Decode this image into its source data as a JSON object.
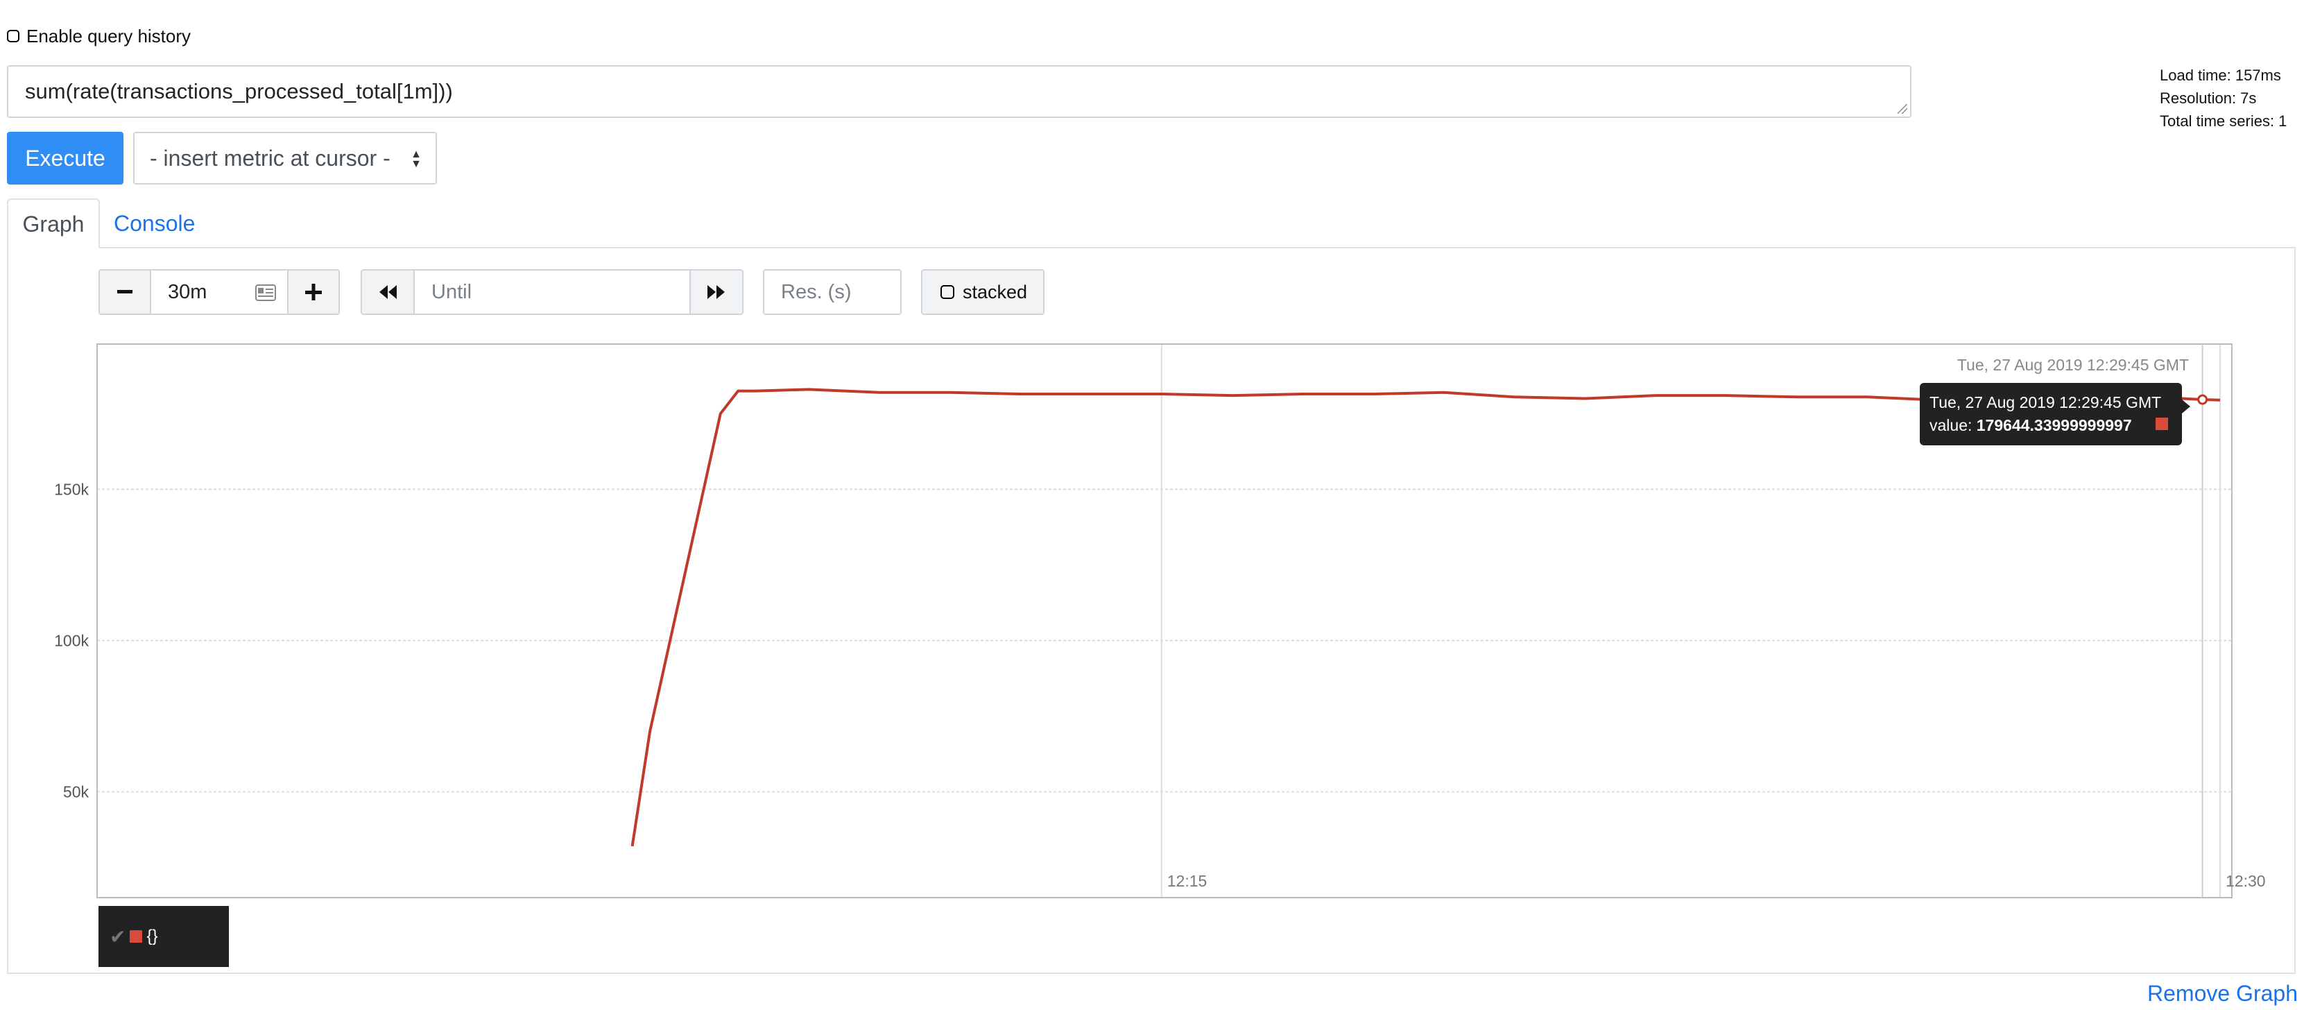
{
  "query_history": {
    "label": "Enable query history",
    "checked": false
  },
  "expression": {
    "value": "sum(rate(transactions_processed_total[1m]))"
  },
  "stats": {
    "load_time": "Load time: 157ms",
    "resolution": "Resolution: 7s",
    "total_series": "Total time series: 1"
  },
  "execute_label": "Execute",
  "metric_select": {
    "selected": "- insert metric at cursor -"
  },
  "tabs": [
    {
      "label": "Graph",
      "active": true
    },
    {
      "label": "Console",
      "active": false
    }
  ],
  "controls": {
    "range_value": "30m",
    "until_placeholder": "Until",
    "resolution_placeholder": "Res. (s)",
    "stacked_label": "stacked"
  },
  "tooltip": {
    "time": "Tue, 27 Aug 2019 12:29:45 GMT",
    "value_label": "value:",
    "value": "179644.33999999997"
  },
  "hover_time_label": "Tue, 27 Aug 2019 12:29:45 GMT",
  "legend": {
    "label": "{}"
  },
  "remove_graph_label": "Remove Graph",
  "colors": {
    "series": "#c0392b",
    "primary": "#2f8ef5",
    "link": "#1a73e8"
  },
  "chart_data": {
    "type": "line",
    "series": [
      {
        "name": "{}",
        "x": [
          "12:07:30",
          "12:07:45",
          "12:08:45",
          "12:09:00",
          "12:09:15",
          "12:10:00",
          "12:11:00",
          "12:12:00",
          "12:13:00",
          "12:14:00",
          "12:15:00",
          "12:16:00",
          "12:17:00",
          "12:18:00",
          "12:19:00",
          "12:20:00",
          "12:21:00",
          "12:22:00",
          "12:23:00",
          "12:24:00",
          "12:25:00",
          "12:26:00",
          "12:27:00",
          "12:28:00",
          "12:29:00",
          "12:29:45",
          "12:30:00"
        ],
        "values": [
          32000,
          70000,
          175000,
          182500,
          182500,
          183000,
          182000,
          182000,
          181500,
          181500,
          181500,
          181000,
          181500,
          181500,
          182000,
          180500,
          180000,
          181000,
          181000,
          180500,
          180500,
          179500,
          180000,
          180000,
          180500,
          179644.34,
          179500
        ]
      }
    ],
    "x_ticks": [
      "12:15",
      "12:30"
    ],
    "y_ticks": [
      "50k",
      "100k",
      "150k"
    ],
    "ylim": [
      15000,
      198000
    ],
    "grid": true,
    "legend": "bottom-left"
  }
}
